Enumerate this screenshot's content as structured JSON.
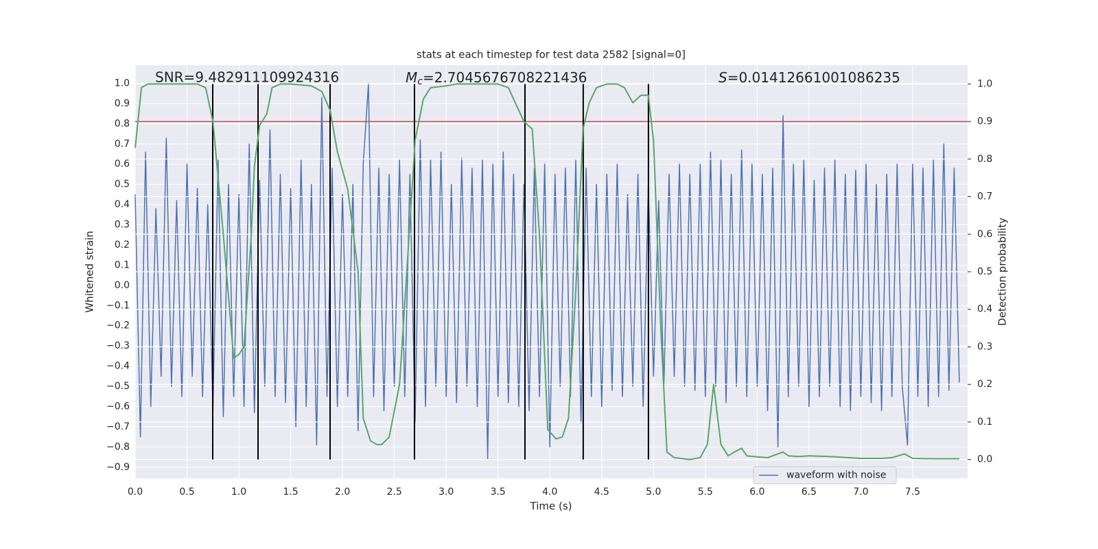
{
  "chart_data": {
    "type": "line",
    "title": "stats at each timestep for test data 2582 [signal=0]",
    "xlabel": "Time (s)",
    "ylabel": "Whitened strain",
    "y2label": "Detection probability",
    "annotations": [
      {
        "text": "SNR=9.482911109924316"
      },
      {
        "symbol": "M",
        "subscript": "c",
        "text": "=2.7045676708221436"
      },
      {
        "symbol": "S",
        "text": "=0.01412661001086235"
      }
    ],
    "xlim": [
      0,
      8.03
    ],
    "ylim": [
      -0.955,
      1.09
    ],
    "y2lim": [
      -0.05,
      1.05
    ],
    "xticks": [
      {
        "value": 0,
        "label": "0.0"
      },
      0.5,
      {
        "value": 1,
        "label": "1.0"
      },
      1.5,
      {
        "value": 2,
        "label": "2.0"
      },
      2.5,
      {
        "value": 3,
        "label": "3.0"
      },
      3.5,
      {
        "value": 4,
        "label": "4.0"
      },
      4.5,
      {
        "value": 5,
        "label": "5.0"
      },
      5.5,
      {
        "value": 6,
        "label": "6.0"
      },
      6.5,
      {
        "value": 7,
        "label": "7.0"
      },
      7.5
    ],
    "yticks": [
      {
        "value": -0.9,
        "label": "−0.9"
      },
      {
        "value": -0.8,
        "label": "−0.8"
      },
      {
        "value": -0.7,
        "label": "−0.7"
      },
      {
        "value": -0.6,
        "label": "−0.6"
      },
      {
        "value": -0.5,
        "label": "−0.5"
      },
      {
        "value": -0.4,
        "label": "−0.4"
      },
      {
        "value": -0.3,
        "label": "−0.3"
      },
      {
        "value": -0.2,
        "label": "−0.2"
      },
      {
        "value": -0.1,
        "label": "−0.1"
      },
      {
        "value": 0,
        "label": "0.0"
      },
      0.1,
      0.2,
      0.3,
      0.4,
      0.5,
      0.6,
      0.7,
      0.8,
      0.9,
      {
        "value": 1,
        "label": "1.0"
      }
    ],
    "y2ticks": [
      {
        "value": 0,
        "label": "0.0"
      },
      0.1,
      0.2,
      0.3,
      0.4,
      0.5,
      0.6,
      0.7,
      0.8,
      0.9,
      {
        "value": 1,
        "label": "1.0"
      }
    ],
    "grid": true,
    "legend": "lower right",
    "series": [
      {
        "name": "waveform with noise",
        "color": "#4c72b0",
        "x": [
          0,
          0.05,
          0.1,
          0.15,
          0.2,
          0.25,
          0.3,
          0.35,
          0.4,
          0.45,
          0.5,
          0.55,
          0.6,
          0.65,
          0.7,
          0.75,
          0.8,
          0.85,
          0.9,
          0.95,
          1,
          1.05,
          1.1,
          1.15,
          1.2,
          1.25,
          1.3,
          1.35,
          1.4,
          1.45,
          1.5,
          1.55,
          1.6,
          1.65,
          1.7,
          1.75,
          1.8,
          1.85,
          1.9,
          1.95,
          2,
          2.05,
          2.1,
          2.15,
          2.2,
          2.25,
          2.3,
          2.35,
          2.4,
          2.45,
          2.5,
          2.55,
          2.6,
          2.65,
          2.7,
          2.75,
          2.8,
          2.85,
          2.9,
          2.95,
          3,
          3.05,
          3.1,
          3.15,
          3.2,
          3.25,
          3.3,
          3.35,
          3.4,
          3.45,
          3.5,
          3.55,
          3.6,
          3.65,
          3.7,
          3.75,
          3.8,
          3.85,
          3.9,
          3.95,
          4,
          4.05,
          4.1,
          4.15,
          4.2,
          4.25,
          4.3,
          4.35,
          4.4,
          4.45,
          4.5,
          4.55,
          4.6,
          4.65,
          4.7,
          4.75,
          4.8,
          4.85,
          4.9,
          4.95,
          5,
          5.05,
          5.1,
          5.15,
          5.2,
          5.25,
          5.3,
          5.35,
          5.4,
          5.45,
          5.5,
          5.55,
          5.6,
          5.65,
          5.7,
          5.75,
          5.8,
          5.85,
          5.9,
          5.95,
          6,
          6.05,
          6.1,
          6.15,
          6.2,
          6.25,
          6.3,
          6.35,
          6.4,
          6.45,
          6.5,
          6.55,
          6.6,
          6.65,
          6.7,
          6.75,
          6.8,
          6.85,
          6.9,
          6.95,
          7,
          7.05,
          7.1,
          7.15,
          7.2,
          7.25,
          7.3,
          7.35,
          7.4,
          7.45,
          7.5,
          7.55,
          7.6,
          7.65,
          7.7,
          7.75,
          7.8,
          7.85,
          7.9,
          7.95
        ],
        "values": [
          0.45,
          -0.75,
          0.66,
          -0.6,
          0.38,
          -0.45,
          0.73,
          -0.5,
          0.42,
          -0.55,
          0.6,
          -0.45,
          0.48,
          -0.55,
          0.4,
          -0.62,
          0.62,
          -0.65,
          0.5,
          -0.55,
          0.45,
          -0.6,
          0.7,
          -0.63,
          0.52,
          -0.5,
          0.77,
          -0.55,
          0.55,
          -0.58,
          0.48,
          -0.7,
          0.62,
          -0.6,
          0.5,
          -0.79,
          0.93,
          -0.55,
          0.58,
          -0.6,
          0.45,
          -0.55,
          0.5,
          -0.72,
          0.6,
          1.0,
          -0.55,
          0.58,
          -0.62,
          0.55,
          -0.5,
          0.62,
          -0.55,
          0.55,
          -0.68,
          0.72,
          -0.6,
          0.62,
          -0.5,
          0.66,
          -0.55,
          0.5,
          -0.58,
          0.63,
          -0.5,
          0.58,
          -0.6,
          0.62,
          -0.86,
          0.6,
          -0.55,
          0.66,
          -0.58,
          0.55,
          -0.6,
          0.5,
          -0.62,
          0.58,
          -0.55,
          0.6,
          -0.8,
          0.55,
          -0.5,
          0.58,
          -0.55,
          0.62,
          -0.68,
          0.58,
          -0.55,
          0.5,
          -0.6,
          0.55,
          -0.52,
          0.6,
          -0.55,
          0.45,
          -0.5,
          0.55,
          -0.6,
          0.5,
          -0.45,
          0.42,
          -0.5,
          0.55,
          -0.45,
          0.6,
          -0.5,
          0.55,
          -0.52,
          0.6,
          -0.55,
          0.66,
          -0.5,
          0.62,
          -0.58,
          0.55,
          -0.5,
          0.67,
          -0.55,
          0.6,
          -0.5,
          0.55,
          -0.62,
          0.58,
          -0.8,
          0.84,
          -0.55,
          0.6,
          -0.5,
          0.62,
          -0.6,
          0.52,
          -0.55,
          0.58,
          -0.5,
          0.62,
          -0.6,
          0.55,
          -0.62,
          0.57,
          -0.55,
          0.6,
          -0.58,
          0.5,
          -0.62,
          0.55,
          -0.55,
          0.6,
          -0.5,
          -0.79,
          0.6,
          -0.55,
          0.58,
          -0.6,
          0.62,
          -0.55,
          0.7,
          -0.52,
          0.58,
          -0.48
        ]
      },
      {
        "color": "#55a868",
        "axis": "y2",
        "x": [
          0,
          0.06,
          0.12,
          0.6,
          0.68,
          0.75,
          0.85,
          0.95,
          1,
          1.05,
          1.12,
          1.15,
          1.2,
          1.27,
          1.32,
          1.4,
          1.5,
          1.7,
          1.8,
          1.88,
          1.95,
          2.05,
          2.15,
          2.2,
          2.27,
          2.33,
          2.38,
          2.45,
          2.55,
          2.62,
          2.7,
          2.78,
          2.85,
          3,
          3.1,
          3.5,
          3.6,
          3.75,
          3.83,
          3.9,
          3.98,
          4.06,
          4.12,
          4.18,
          4.25,
          4.32,
          4.38,
          4.45,
          4.55,
          4.65,
          4.72,
          4.8,
          4.88,
          4.95,
          5,
          5.07,
          5.13,
          5.2,
          5.35,
          5.45,
          5.52,
          5.58,
          5.65,
          5.72,
          5.78,
          5.85,
          5.9,
          6,
          6.1,
          6.25,
          6.3,
          6.4,
          6.5,
          6.7,
          7,
          7.2,
          7.3,
          7.42,
          7.5,
          7.7,
          7.95
        ],
        "values": [
          0.83,
          0.99,
          1.0,
          1.0,
          0.99,
          0.9,
          0.6,
          0.27,
          0.28,
          0.3,
          0.6,
          0.78,
          0.89,
          0.92,
          0.99,
          1.0,
          1.0,
          0.995,
          0.98,
          0.93,
          0.82,
          0.72,
          0.5,
          0.11,
          0.05,
          0.04,
          0.04,
          0.06,
          0.2,
          0.5,
          0.85,
          0.96,
          0.99,
          0.995,
          1.0,
          1.0,
          0.99,
          0.9,
          0.88,
          0.6,
          0.08,
          0.055,
          0.06,
          0.11,
          0.45,
          0.88,
          0.95,
          0.99,
          1.0,
          1.0,
          0.99,
          0.95,
          0.97,
          0.97,
          0.85,
          0.35,
          0.02,
          0.005,
          0.0,
          0.005,
          0.04,
          0.2,
          0.04,
          0.01,
          0.02,
          0.03,
          0.01,
          0.007,
          0.005,
          0.02,
          0.01,
          0.008,
          0.01,
          0.008,
          0.003,
          0.003,
          0.005,
          0.015,
          0.003,
          0.002,
          0.002
        ]
      }
    ],
    "hlines": [
      {
        "value": 0.9,
        "axis": "y2",
        "color": "#c44e52"
      }
    ],
    "vlines": {
      "x": [
        0.748,
        1.185,
        1.88,
        2.694,
        3.76,
        4.322,
        4.951
      ],
      "ymin": 0,
      "ymax": 1,
      "axis": "y2",
      "color": "#000000"
    }
  }
}
